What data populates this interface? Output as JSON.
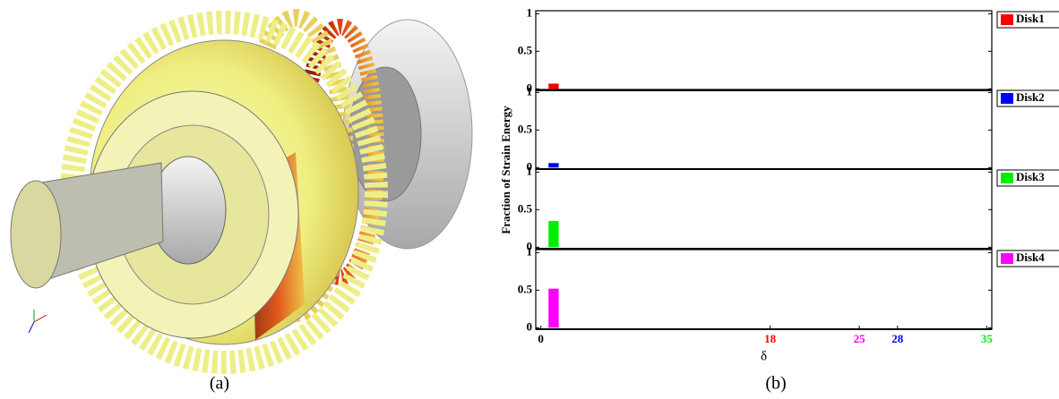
{
  "panel_a": {
    "caption": "(a)"
  },
  "panel_b": {
    "caption": "(b)",
    "ylabel": "Fraction of Strain Energy"
  },
  "chart_data": [
    {
      "type": "bar",
      "x": [
        1
      ],
      "series": [
        {
          "name": "Disk1",
          "color": "#ff0000",
          "values": [
            0.07
          ]
        }
      ],
      "xlim": [
        -0.4,
        35.4
      ],
      "ylim": [
        -0.02,
        1.04
      ],
      "yticks": [
        0,
        0.5,
        1
      ]
    },
    {
      "type": "bar",
      "x": [
        1
      ],
      "series": [
        {
          "name": "Disk2",
          "color": "#0000ff",
          "values": [
            0.06
          ]
        }
      ],
      "xlim": [
        -0.4,
        35.4
      ],
      "ylim": [
        -0.02,
        1.04
      ],
      "yticks": [
        0,
        0.5,
        1
      ]
    },
    {
      "type": "bar",
      "x": [
        1
      ],
      "series": [
        {
          "name": "Disk3",
          "color": "#00ee00",
          "values": [
            0.35
          ]
        }
      ],
      "xlim": [
        -0.4,
        35.4
      ],
      "ylim": [
        -0.02,
        1.04
      ],
      "yticks": [
        0,
        0.5,
        1
      ]
    },
    {
      "type": "bar",
      "x": [
        1
      ],
      "series": [
        {
          "name": "Disk4",
          "color": "#ff00ff",
          "values": [
            0.52
          ]
        }
      ],
      "xlim": [
        -0.4,
        35.4
      ],
      "ylim": [
        -0.02,
        1.04
      ],
      "yticks": [
        0,
        0.5,
        1
      ],
      "xticks": [
        0,
        18,
        25,
        28,
        35
      ],
      "xtick_colors": [
        "#000000",
        "#ff0000",
        "#ff00ff",
        "#0000ff",
        "#00ee00"
      ],
      "xlabel": "δ"
    }
  ]
}
